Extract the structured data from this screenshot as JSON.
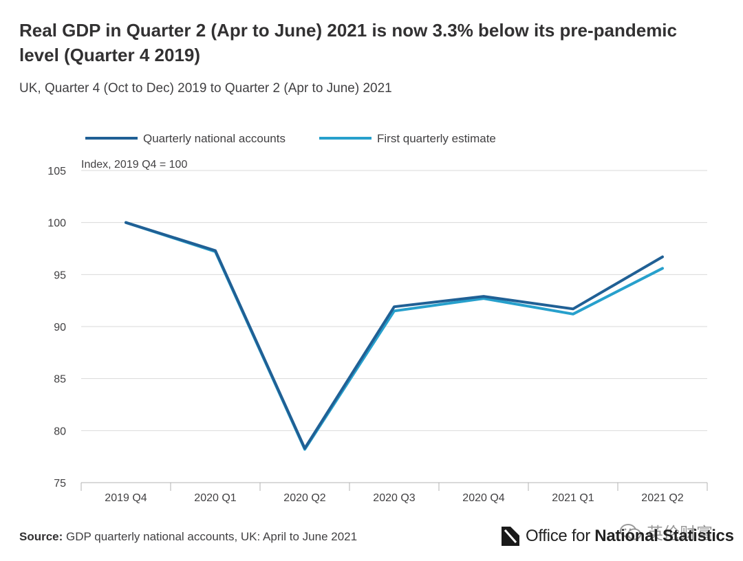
{
  "header": {
    "title": "Real GDP in Quarter 2 (Apr to June) 2021 is now 3.3% below its pre-pandemic level (Quarter 4 2019)",
    "subtitle": "UK, Quarter 4 (Oct to Dec) 2019 to Quarter 2 (Apr to June) 2021"
  },
  "chart_data": {
    "type": "line",
    "title": "Real GDP in Quarter 2 (Apr to June) 2021 is now 3.3% below its pre-pandemic level (Quarter 4 2019)",
    "ylabel": "Index, 2019 Q4 = 100",
    "xlabel": "",
    "categories": [
      "2019 Q4",
      "2020 Q1",
      "2020 Q2",
      "2020 Q3",
      "2020 Q4",
      "2021 Q1",
      "2021 Q2"
    ],
    "ylim": [
      75,
      105
    ],
    "yticks": [
      75,
      80,
      85,
      90,
      95,
      100,
      105
    ],
    "grid": true,
    "legend_position": "top-left",
    "series": [
      {
        "name": "Quarterly national accounts",
        "color": "#206095",
        "values": [
          100,
          97.3,
          78.3,
          91.9,
          92.9,
          91.7,
          96.7
        ]
      },
      {
        "name": "First quarterly estimate",
        "color": "#27a0cc",
        "values": [
          100,
          97.2,
          78.2,
          91.5,
          92.7,
          91.2,
          95.6
        ]
      }
    ]
  },
  "footer": {
    "source_label": "Source:",
    "source_text": " GDP quarterly national accounts, UK: April to June 2021",
    "logo_text_a": "Office for ",
    "logo_text_b": "National Statistics",
    "watermark_text": "英伦财富"
  }
}
